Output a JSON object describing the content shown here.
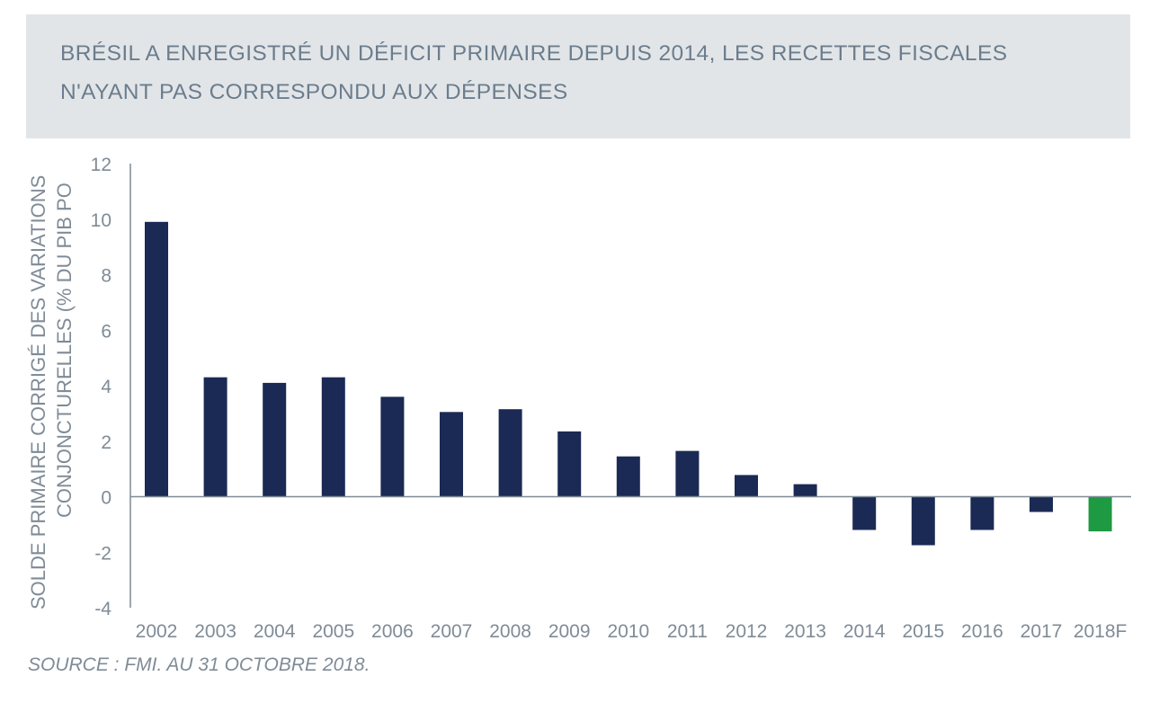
{
  "title": {
    "line1": "BRÉSIL A ENREGISTRÉ UN DÉFICIT PRIMAIRE DEPUIS 2014, LES RECETTES FISCALES",
    "line2": "N'AYANT PAS CORRESPONDU AUX DÉPENSES"
  },
  "source": "SOURCE : FMI. AU 31 OCTOBRE 2018.",
  "colors": {
    "bar": "#1b2a54",
    "forecast_bar": "#1e9a43",
    "axis": "#7f8b96",
    "title_bg": "#e2e5e8"
  },
  "chart_data": {
    "type": "bar",
    "ylabel_line1": "SOLDE PRIMAIRE CORRIGÉ DES VARIATIONS",
    "ylabel_line2": "CONJONCTURELLES (% DU PIB PO",
    "ylim": [
      -4,
      12
    ],
    "yticks": [
      "12",
      "10",
      "8",
      "6",
      "4",
      "2",
      "0",
      "-2",
      "-4"
    ],
    "ytick_values": [
      12,
      10,
      8,
      6,
      4,
      2,
      0,
      -2,
      -4
    ],
    "categories": [
      "2002",
      "2003",
      "2004",
      "2005",
      "2006",
      "2007",
      "2008",
      "2009",
      "2010",
      "2011",
      "2012",
      "2013",
      "2014",
      "2015",
      "2016",
      "2017",
      "2018F"
    ],
    "values": [
      9.9,
      4.3,
      4.1,
      4.3,
      3.6,
      3.05,
      3.15,
      2.35,
      1.45,
      1.65,
      0.78,
      0.45,
      -1.2,
      -1.75,
      -1.2,
      -0.55,
      -1.25
    ],
    "highlight_category": "2018F",
    "grid": false
  }
}
